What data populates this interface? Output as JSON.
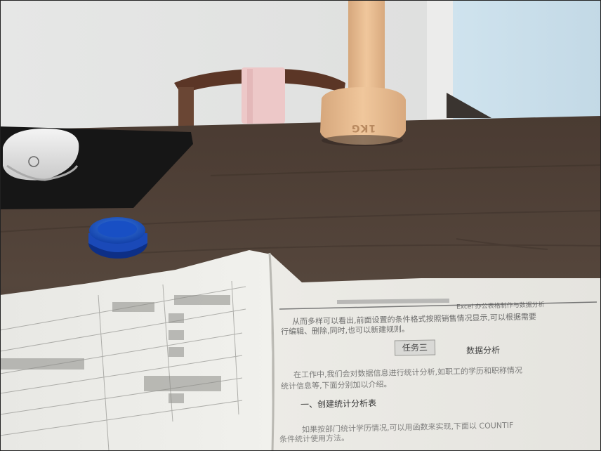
{
  "scene": {
    "description_objects": [
      "wall",
      "chair",
      "desk",
      "mouse-pad",
      "mouse",
      "dumbbell",
      "bottle-cap",
      "open-book"
    ],
    "dumbbell_label": "1KG",
    "book": {
      "header_line": "Excel 办公表格制作与数据分析",
      "para1_a": "从而多样可以看出,前面设置的条件格式按照销售情况显示,可以根据需要",
      "para1_b": "行编辑、删除,同时,也可以新建规则。",
      "section_chip": "任务三",
      "section_title": "数据分析",
      "para2_a": "在工作中,我们会对数据信息进行统计分析,如职工的学历和职称情况",
      "para2_b": "统计信息等,下面分别加以介绍。",
      "subheading": "一、创建统计分析表",
      "para3_a": "如果按部门统计学历情况,可以用函数来实现,下面以 COUNTIF",
      "para3_b": "条件统计使用方法。"
    }
  }
}
